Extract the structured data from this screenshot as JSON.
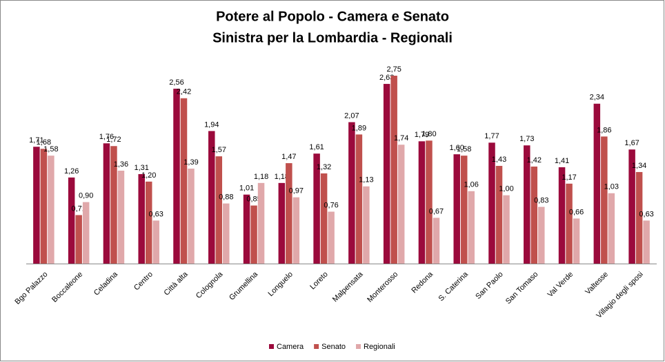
{
  "chart_data": {
    "type": "bar",
    "title": [
      "Potere al Popolo - Camera e Senato",
      "Sinistra per la Lombardia - Regionali"
    ],
    "categories": [
      "Bgo Palazzo",
      "Boccaleone",
      "Celadina",
      "Centro",
      "Città alta",
      "Colognola",
      "Grumellina",
      "Longuelo",
      "Loreto",
      "Malpensata",
      "Monterosso",
      "Redona",
      "S. Caterina",
      "San Paolo",
      "San Tomaso",
      "Val Verde",
      "Valtesse",
      "Villagio degli sposi"
    ],
    "series": [
      {
        "name": "Camera",
        "color": "#9b0a3c",
        "values": [
          1.71,
          1.26,
          1.76,
          1.31,
          2.56,
          1.94,
          1.01,
          1.18,
          1.61,
          2.07,
          2.63,
          1.79,
          1.6,
          1.77,
          1.73,
          1.41,
          2.34,
          1.67
        ],
        "value_labels": [
          "1,71",
          "1,26",
          "1,76",
          "1,31",
          "2,56",
          "1,94",
          "1,01",
          "1,18",
          "1,61",
          "2,07",
          "2,63",
          "1,79",
          "1,60",
          "1,77",
          "1,73",
          "1,41",
          "2,34",
          "1,67"
        ]
      },
      {
        "name": "Senato",
        "color": "#c0504d",
        "values": [
          1.68,
          0.71,
          1.72,
          1.2,
          2.42,
          1.57,
          0.85,
          1.47,
          1.32,
          1.89,
          2.75,
          1.8,
          1.58,
          1.43,
          1.42,
          1.17,
          1.86,
          1.34
        ],
        "value_labels": [
          "1,68",
          "0,71",
          "1,72",
          "1,20",
          "2,42",
          "1,57",
          "0,85",
          "1,47",
          "1,32",
          "1,89",
          "2,75",
          "1,80",
          "1,58",
          "1,43",
          "1,42",
          "1,17",
          "1,86",
          "1,34"
        ]
      },
      {
        "name": "Regionali",
        "color": "#e0a8aa",
        "values": [
          1.58,
          0.9,
          1.36,
          0.63,
          1.39,
          0.88,
          1.18,
          0.97,
          0.76,
          1.13,
          1.74,
          0.67,
          1.06,
          1.0,
          0.83,
          0.66,
          1.03,
          0.63
        ],
        "value_labels": [
          "1,58",
          "0,90",
          "1,36",
          "0,63",
          "1,39",
          "0,88",
          "1,18",
          "0,97",
          "0,76",
          "1,13",
          "1,74",
          "0,67",
          "1,06",
          "1,00",
          "0,83",
          "0,66",
          "1,03",
          "0,63"
        ]
      }
    ]
  }
}
